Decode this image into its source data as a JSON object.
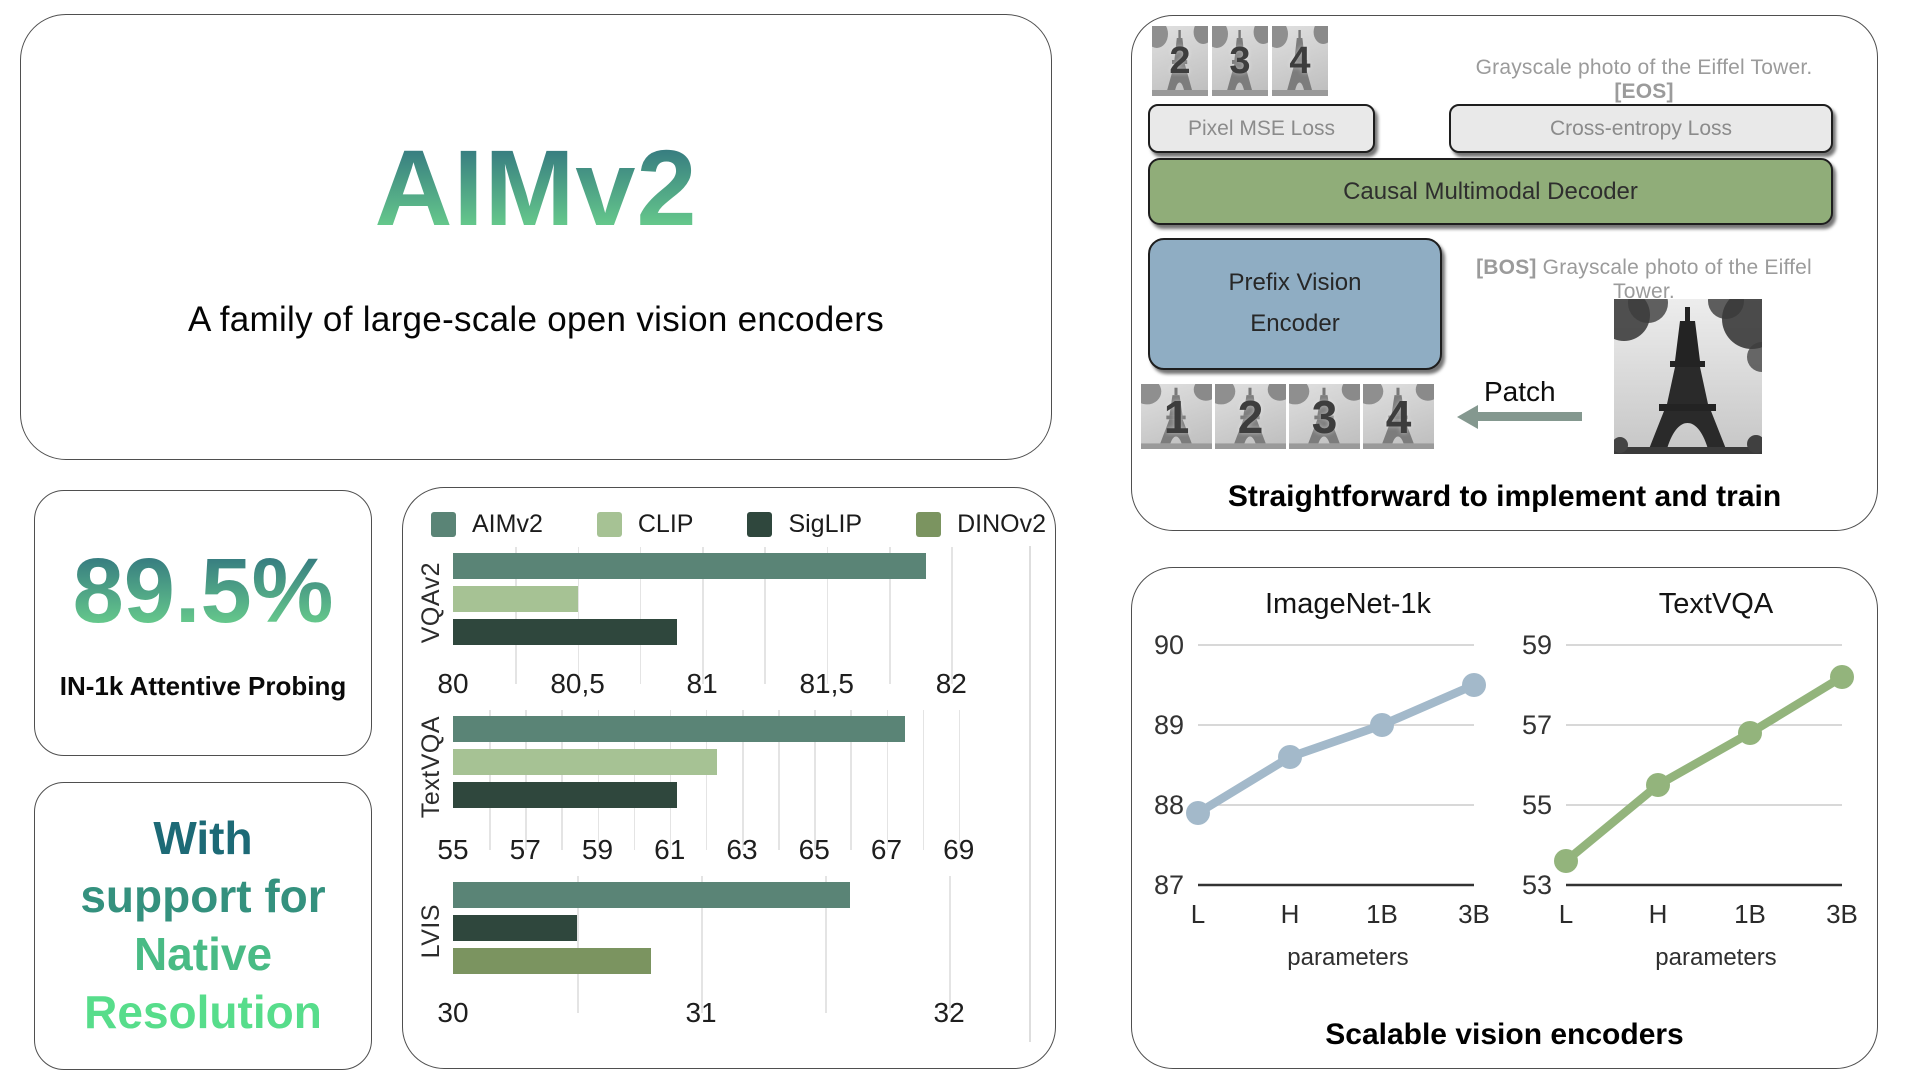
{
  "hero": {
    "title": "AIMv2",
    "subtitle": "A family of large-scale open vision encoders"
  },
  "stat_box": {
    "value": "89.5%",
    "label": "IN-1k Attentive Probing"
  },
  "native_box": {
    "lines": [
      "With",
      "support for",
      "Native",
      "Resolution"
    ],
    "line_colors": [
      "#1d6a76",
      "#34917e",
      "#49bb85",
      "#57dd8b"
    ]
  },
  "legend": {
    "items": [
      {
        "label": "AIMv2",
        "color": "#5a8476"
      },
      {
        "label": "CLIP",
        "color": "#a6c294"
      },
      {
        "label": "SigLIP",
        "color": "#2f473d"
      },
      {
        "label": "DINOv2",
        "color": "#7b9460"
      }
    ]
  },
  "chart_data": [
    {
      "type": "bar",
      "title": "VQAv2",
      "orientation": "horizontal",
      "xlim": [
        80,
        82.32
      ],
      "grid_step": 0.25,
      "grid": true,
      "ticks": [
        {
          "v": 80,
          "label": "80"
        },
        {
          "v": 80.5,
          "label": "80,5"
        },
        {
          "v": 81,
          "label": "81"
        },
        {
          "v": 81.5,
          "label": "81,5"
        },
        {
          "v": 82,
          "label": "82"
        }
      ],
      "bars": [
        {
          "name": "AIMv2",
          "value": 81.9
        },
        {
          "name": "CLIP",
          "value": 80.5
        },
        {
          "name": "SigLIP",
          "value": 80.9
        }
      ]
    },
    {
      "type": "bar",
      "title": "TextVQA",
      "orientation": "horizontal",
      "xlim": [
        55,
        71.0
      ],
      "grid_step": 1,
      "grid": true,
      "ticks": [
        {
          "v": 55,
          "label": "55"
        },
        {
          "v": 57,
          "label": "57"
        },
        {
          "v": 59,
          "label": "59"
        },
        {
          "v": 61,
          "label": "61"
        },
        {
          "v": 63,
          "label": "63"
        },
        {
          "v": 65,
          "label": "65"
        },
        {
          "v": 67,
          "label": "67"
        },
        {
          "v": 69,
          "label": "69"
        }
      ],
      "bars": [
        {
          "name": "AIMv2",
          "value": 67.5
        },
        {
          "name": "CLIP",
          "value": 62.3
        },
        {
          "name": "SigLIP",
          "value": 61.2
        }
      ]
    },
    {
      "type": "bar",
      "title": "LVIS",
      "orientation": "horizontal",
      "xlim": [
        30,
        32.33
      ],
      "grid_step": 0.5,
      "grid": true,
      "ticks": [
        {
          "v": 30,
          "label": "30"
        },
        {
          "v": 31,
          "label": "31"
        },
        {
          "v": 32,
          "label": "32"
        }
      ],
      "bars": [
        {
          "name": "AIMv2",
          "value": 31.6
        },
        {
          "name": "SigLIP",
          "value": 30.5
        },
        {
          "name": "DINOv2",
          "value": 30.8
        }
      ]
    },
    {
      "type": "line",
      "title": "ImageNet-1k",
      "x_labels": [
        "L",
        "H",
        "1B",
        "3B"
      ],
      "values": [
        87.9,
        88.6,
        89.0,
        89.5
      ],
      "yticks": [
        87,
        88,
        89,
        90
      ],
      "ylim": [
        87,
        90
      ],
      "xlabel": "parameters",
      "color": "#a3b9ca",
      "grid": true,
      "legend_position": "none"
    },
    {
      "type": "line",
      "title": "TextVQA",
      "x_labels": [
        "L",
        "H",
        "1B",
        "3B"
      ],
      "values": [
        53.6,
        55.5,
        56.8,
        58.2
      ],
      "yticks": [
        53,
        55,
        57,
        59
      ],
      "ylim": [
        53,
        59
      ],
      "xlabel": "parameters",
      "color": "#93b47c",
      "grid": true,
      "legend_position": "none"
    }
  ],
  "pipeline": {
    "output_patches": [
      "2",
      "3",
      "4"
    ],
    "output_text": {
      "text": "Grayscale photo of the Eiffel Tower.",
      "token": "[EOS]"
    },
    "pixel_loss_label": "Pixel MSE Loss",
    "ce_loss_label": "Cross-entropy Loss",
    "decoder_label": "Causal Multimodal Decoder",
    "encoder_label": "Prefix Vision Encoder",
    "input_text": {
      "token": "[BOS]",
      "text": "Grayscale photo of the Eiffel Tower."
    },
    "patch_arrow_label": "Patch",
    "input_patches": [
      "1",
      "2",
      "3",
      "4"
    ],
    "caption": "Straightforward to implement and train"
  },
  "scaling": {
    "caption": "Scalable vision encoders"
  },
  "colors": {
    "gradient_top": "#2e6e7e",
    "gradient_bottom": "#6fd88e",
    "decoder_bg": "#90ad79",
    "encoder_bg": "#8fadc3",
    "loss_bg": "#e9e9e9",
    "muted_text": "#9b9b9b",
    "arrow": "#84988f"
  }
}
